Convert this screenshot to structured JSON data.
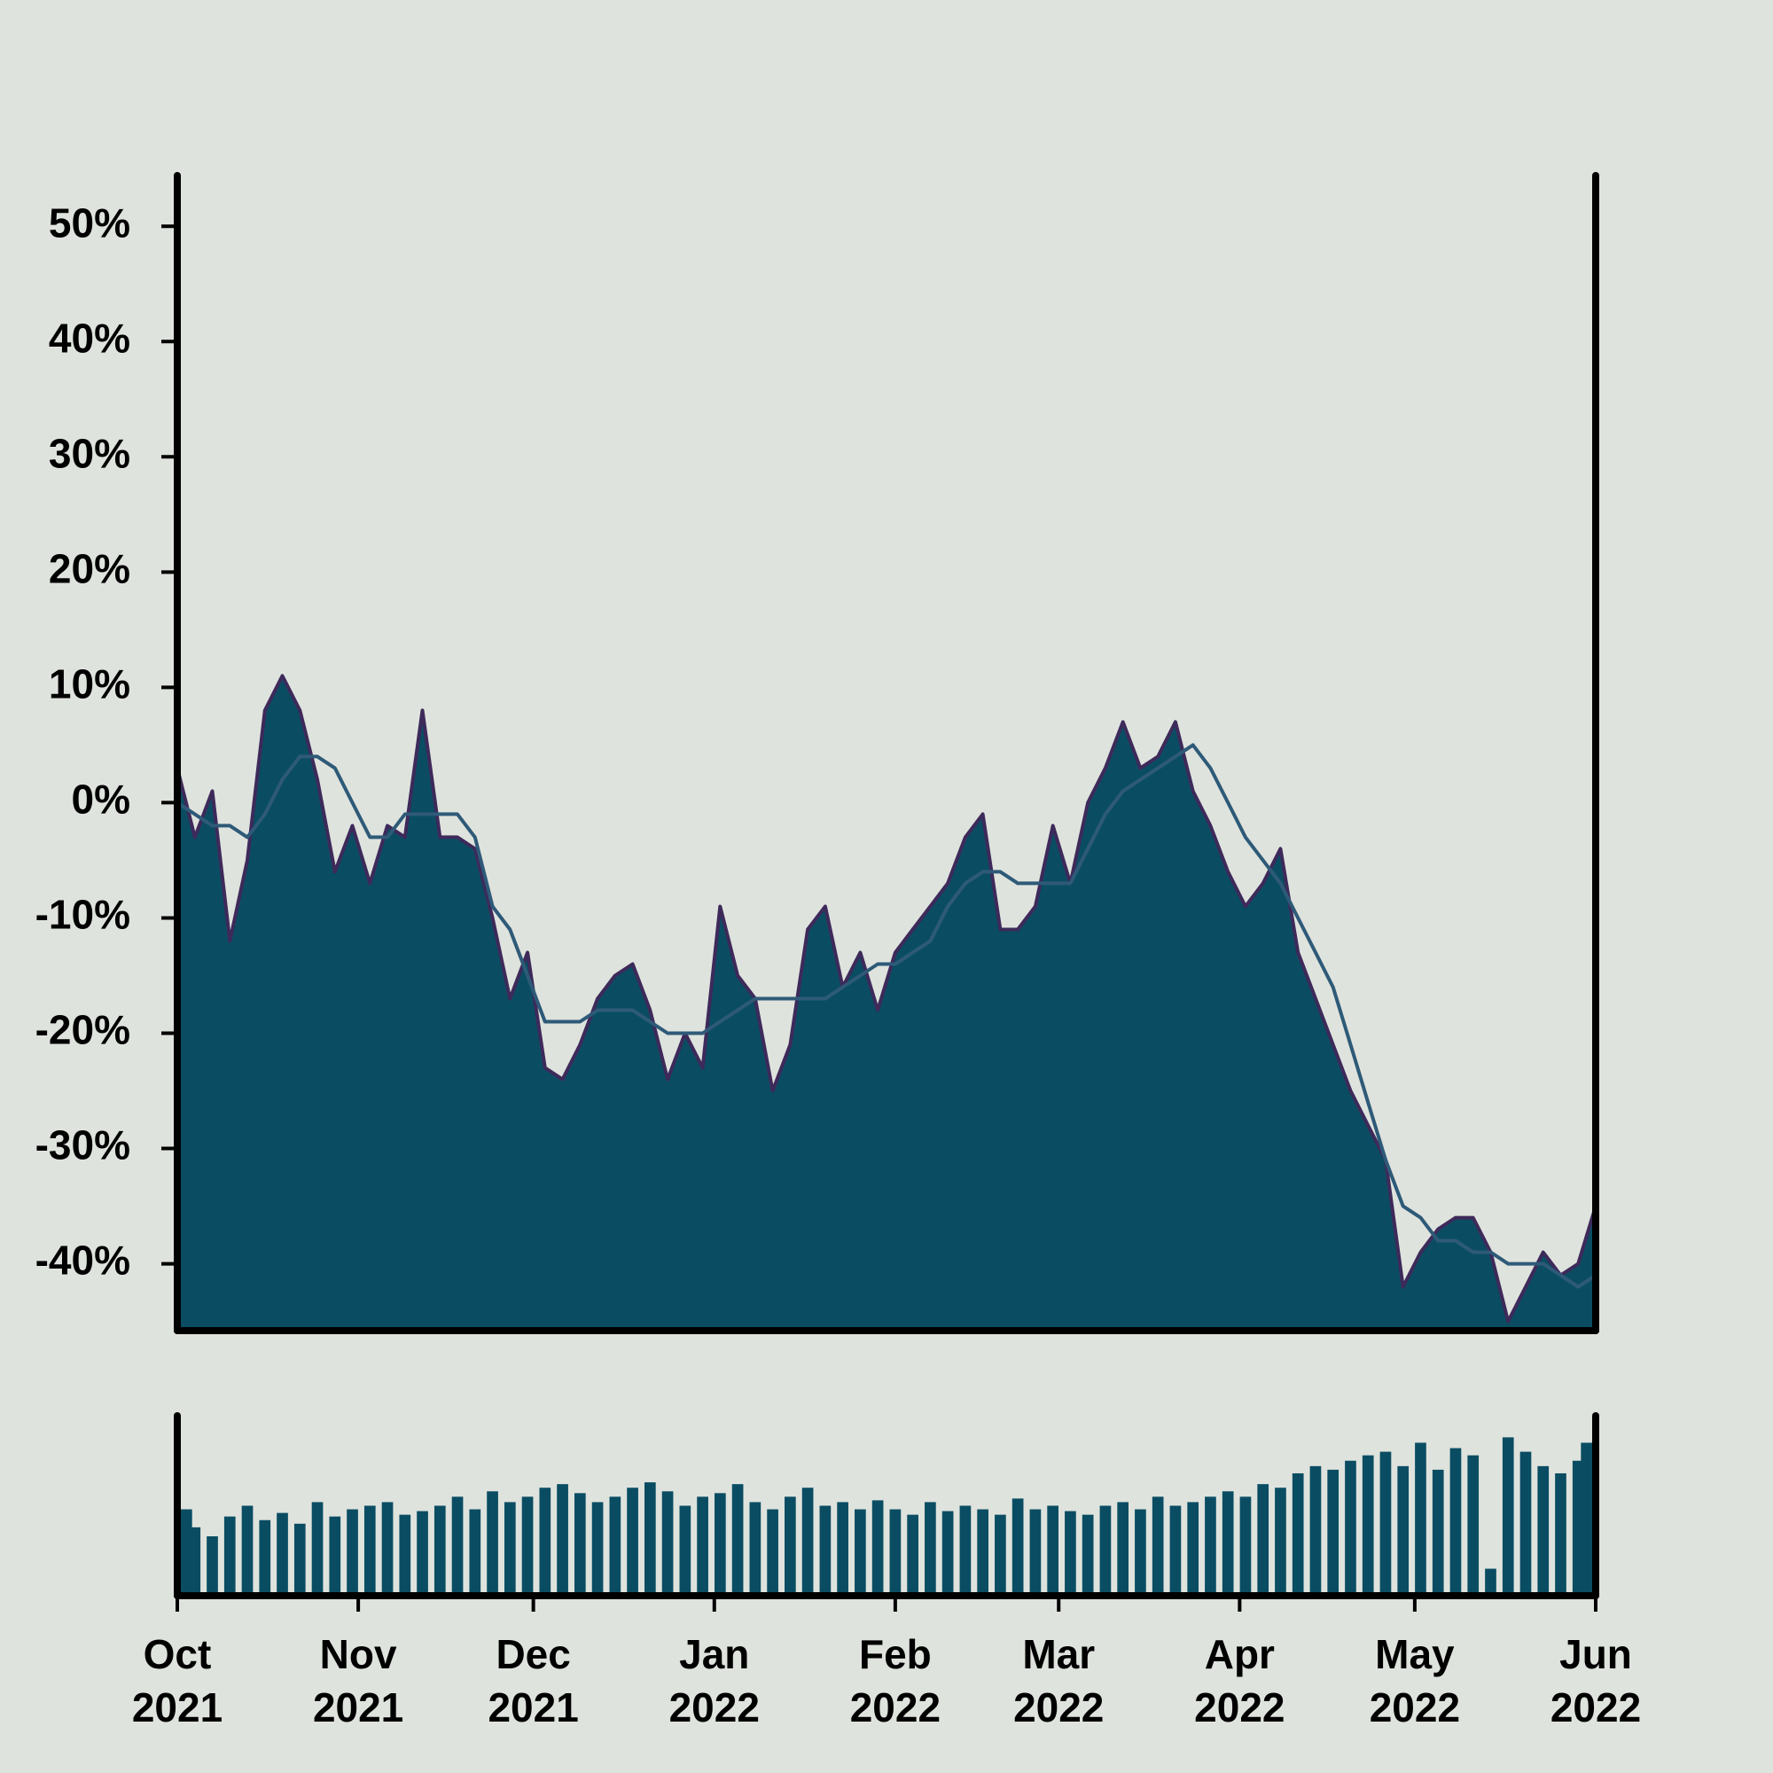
{
  "chart_data": [
    {
      "type": "area",
      "x": [
        "2021-10-01",
        "2021-10-04",
        "2021-10-07",
        "2021-10-10",
        "2021-10-13",
        "2021-10-16",
        "2021-10-19",
        "2021-10-22",
        "2021-10-25",
        "2021-10-28",
        "2021-10-31",
        "2021-11-03",
        "2021-11-06",
        "2021-11-09",
        "2021-11-12",
        "2021-11-15",
        "2021-11-18",
        "2021-11-21",
        "2021-11-24",
        "2021-11-27",
        "2021-11-30",
        "2021-12-03",
        "2021-12-06",
        "2021-12-09",
        "2021-12-12",
        "2021-12-15",
        "2021-12-18",
        "2021-12-21",
        "2021-12-24",
        "2021-12-27",
        "2021-12-30",
        "2022-01-02",
        "2022-01-05",
        "2022-01-08",
        "2022-01-11",
        "2022-01-14",
        "2022-01-17",
        "2022-01-20",
        "2022-01-23",
        "2022-01-26",
        "2022-01-29",
        "2022-02-01",
        "2022-02-04",
        "2022-02-07",
        "2022-02-10",
        "2022-02-13",
        "2022-02-16",
        "2022-02-19",
        "2022-02-22",
        "2022-02-25",
        "2022-02-28",
        "2022-03-03",
        "2022-03-06",
        "2022-03-09",
        "2022-03-12",
        "2022-03-15",
        "2022-03-18",
        "2022-03-21",
        "2022-03-24",
        "2022-03-27",
        "2022-03-30",
        "2022-04-02",
        "2022-04-05",
        "2022-04-08",
        "2022-04-11",
        "2022-04-14",
        "2022-04-17",
        "2022-04-20",
        "2022-04-23",
        "2022-04-26",
        "2022-04-29",
        "2022-05-02",
        "2022-05-05",
        "2022-05-08",
        "2022-05-11",
        "2022-05-14",
        "2022-05-17",
        "2022-05-20",
        "2022-05-23",
        "2022-05-26",
        "2022-05-29",
        "2022-06-01"
      ],
      "xlim": [
        "2021-10-01",
        "2022-06-01"
      ],
      "series": [
        {
          "type": "area",
          "color": "#0a4d63",
          "edge_color": "#3d2a5a",
          "values": [
            3,
            -3,
            1,
            -12,
            -5,
            8,
            11,
            8,
            2,
            -6,
            -2,
            -7,
            -2,
            -3,
            8,
            -3,
            -3,
            -4,
            -10,
            -17,
            -13,
            -23,
            -24,
            -21,
            -17,
            -15,
            -14,
            -18,
            -24,
            -20,
            -23,
            -9,
            -15,
            -17,
            -25,
            -21,
            -11,
            -9,
            -16,
            -13,
            -18,
            -13,
            -11,
            -9,
            -7,
            -3,
            -1,
            -11,
            -11,
            -9,
            -2,
            -7,
            0,
            3,
            7,
            3,
            4,
            7,
            1,
            -2,
            -6,
            -9,
            -7,
            -4,
            -13,
            -17,
            -21,
            -25,
            -28,
            -31,
            -42,
            -39,
            -37,
            -36,
            -36,
            -39,
            -45,
            -42,
            -39,
            -41,
            -40,
            -35
          ]
        },
        {
          "type": "line",
          "color": "#2e5a78",
          "values": [
            0,
            -1,
            -2,
            -2,
            -3,
            -1,
            2,
            4,
            4,
            3,
            0,
            -3,
            -3,
            -1,
            -1,
            -1,
            -1,
            -3,
            -9,
            -11,
            -15,
            -19,
            -19,
            -19,
            -18,
            -18,
            -18,
            -19,
            -20,
            -20,
            -20,
            -19,
            -18,
            -17,
            -17,
            -17,
            -17,
            -17,
            -16,
            -15,
            -14,
            -14,
            -13,
            -12,
            -9,
            -7,
            -6,
            -6,
            -7,
            -7,
            -7,
            -7,
            -4,
            -1,
            1,
            2,
            3,
            4,
            5,
            3,
            0,
            -3,
            -5,
            -7,
            -10,
            -13,
            -16,
            -21,
            -26,
            -31,
            -35,
            -36,
            -38,
            -38,
            -39,
            -39,
            -40,
            -40,
            -40,
            -41,
            -42,
            -41
          ]
        }
      ],
      "ylim": [
        -45.8,
        54.4
      ],
      "yticks": [
        {
          "value": -40,
          "label": "-40%"
        },
        {
          "value": -30,
          "label": "-30%"
        },
        {
          "value": -20,
          "label": "-20%"
        },
        {
          "value": -10,
          "label": "-10%"
        },
        {
          "value": 0,
          "label": "0%"
        },
        {
          "value": 10,
          "label": "10%"
        },
        {
          "value": 20,
          "label": "20%"
        },
        {
          "value": 30,
          "label": "30%"
        },
        {
          "value": 40,
          "label": "40%"
        },
        {
          "value": 50,
          "label": "50%"
        }
      ]
    },
    {
      "type": "bar",
      "x": [
        "2021-10-01",
        "2021-10-04",
        "2021-10-07",
        "2021-10-10",
        "2021-10-13",
        "2021-10-16",
        "2021-10-19",
        "2021-10-22",
        "2021-10-25",
        "2021-10-28",
        "2021-10-31",
        "2021-11-03",
        "2021-11-06",
        "2021-11-09",
        "2021-11-12",
        "2021-11-15",
        "2021-11-18",
        "2021-11-21",
        "2021-11-24",
        "2021-11-27",
        "2021-11-30",
        "2021-12-03",
        "2021-12-06",
        "2021-12-09",
        "2021-12-12",
        "2021-12-15",
        "2021-12-18",
        "2021-12-21",
        "2021-12-24",
        "2021-12-27",
        "2021-12-30",
        "2022-01-02",
        "2022-01-05",
        "2022-01-08",
        "2022-01-11",
        "2022-01-14",
        "2022-01-17",
        "2022-01-20",
        "2022-01-23",
        "2022-01-26",
        "2022-01-29",
        "2022-02-01",
        "2022-02-04",
        "2022-02-07",
        "2022-02-10",
        "2022-02-13",
        "2022-02-16",
        "2022-02-19",
        "2022-02-22",
        "2022-02-25",
        "2022-02-28",
        "2022-03-03",
        "2022-03-06",
        "2022-03-09",
        "2022-03-12",
        "2022-03-15",
        "2022-03-18",
        "2022-03-21",
        "2022-03-24",
        "2022-03-27",
        "2022-03-30",
        "2022-04-02",
        "2022-04-05",
        "2022-04-08",
        "2022-04-11",
        "2022-04-14",
        "2022-04-17",
        "2022-04-20",
        "2022-04-23",
        "2022-04-26",
        "2022-04-29",
        "2022-05-02",
        "2022-05-05",
        "2022-05-08",
        "2022-05-11",
        "2022-05-14",
        "2022-05-17",
        "2022-05-20",
        "2022-05-23",
        "2022-05-26",
        "2022-05-29",
        "2022-06-01"
      ],
      "xlim": [
        "2021-10-01",
        "2022-06-01"
      ],
      "color": "#0a4d63",
      "values": [
        48,
        38,
        33,
        44,
        50,
        42,
        46,
        40,
        52,
        44,
        48,
        50,
        52,
        45,
        47,
        50,
        55,
        48,
        58,
        52,
        55,
        60,
        62,
        57,
        52,
        55,
        60,
        63,
        58,
        50,
        55,
        57,
        62,
        52,
        48,
        55,
        60,
        50,
        52,
        48,
        53,
        48,
        45,
        52,
        47,
        50,
        48,
        45,
        54,
        48,
        50,
        47,
        45,
        50,
        52,
        48,
        55,
        50,
        52,
        55,
        58,
        55,
        62,
        60,
        68,
        72,
        70,
        75,
        78,
        80,
        72,
        85,
        70,
        82,
        78,
        15,
        88,
        80,
        72,
        68,
        75,
        85
      ],
      "ylim": [
        0,
        100
      ],
      "xticks": [
        {
          "value": "2021-10-01",
          "label": "Oct\n2021"
        },
        {
          "value": "2021-11-01",
          "label": "Nov\n2021"
        },
        {
          "value": "2021-12-01",
          "label": "Dec\n2021"
        },
        {
          "value": "2022-01-01",
          "label": "Jan\n2022"
        },
        {
          "value": "2022-02-01",
          "label": "Feb\n2022"
        },
        {
          "value": "2022-03-01",
          "label": "Mar\n2022"
        },
        {
          "value": "2022-04-01",
          "label": "Apr\n2022"
        },
        {
          "value": "2022-05-01",
          "label": "May\n2022"
        },
        {
          "value": "2022-06-01",
          "label": "Jun\n2022"
        }
      ]
    }
  ]
}
